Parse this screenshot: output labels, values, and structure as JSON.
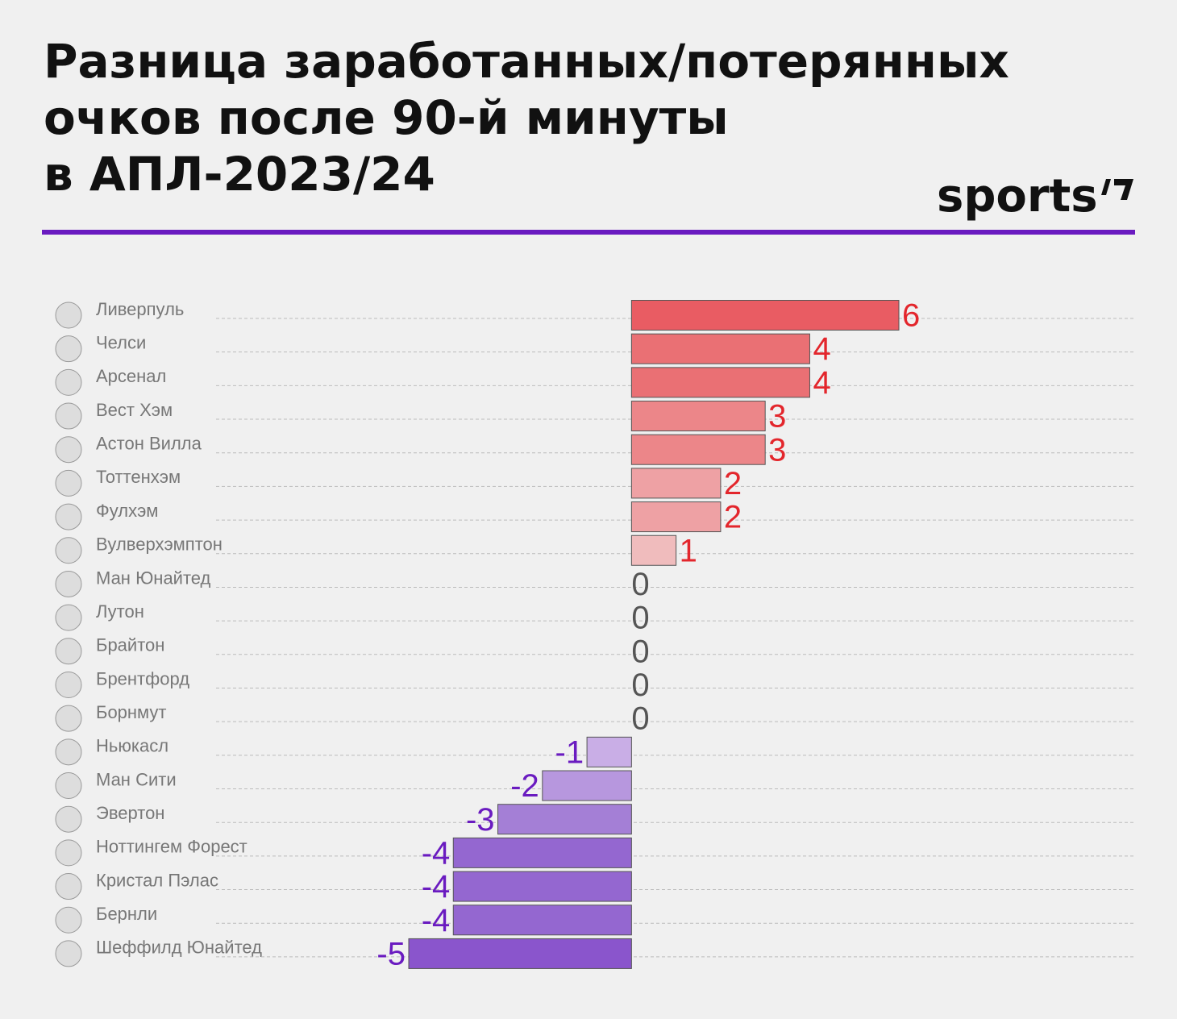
{
  "chart_data": {
    "type": "bar",
    "orientation": "horizontal",
    "title": [
      "Разница заработанных/потерянных",
      "очков после 90-й минуты",
      "в АПЛ-2023/24"
    ],
    "logo": "sports",
    "categories": [
      "Ливерпуль",
      "Челси",
      "Арсенал",
      "Вест Хэм",
      "Астон Вилла",
      "Тоттенхэм",
      "Фулхэм",
      "Вулверхэмптон",
      "Ман Юнайтед",
      "Лутон",
      "Брайтон",
      "Брентфорд",
      "Борнмут",
      "Ньюкасл",
      "Ман Сити",
      "Эвертон",
      "Ноттингем Форест",
      "Кристал Пэлас",
      "Бернли",
      "Шеффилд Юнайтед"
    ],
    "values": [
      6,
      4,
      4,
      3,
      3,
      2,
      2,
      1,
      0,
      0,
      0,
      0,
      0,
      -1,
      -2,
      -3,
      -4,
      -4,
      -4,
      -5
    ],
    "colors": [
      "#e95c63",
      "#ea7074",
      "#ea7074",
      "#ec8689",
      "#ec8689",
      "#eea1a4",
      "#eea1a4",
      "#f0bcbd",
      "#cccccc",
      "#cccccc",
      "#cccccc",
      "#cccccc",
      "#cccccc",
      "#c9aee6",
      "#b797de",
      "#a47fd6",
      "#9467d0",
      "#9467d0",
      "#9467d0",
      "#8a55cc"
    ],
    "positive_label_color": "#e3262c",
    "zero_label_color": "#555555",
    "negative_label_color": "#6a1bc0",
    "xlim": [
      -5,
      6
    ]
  }
}
